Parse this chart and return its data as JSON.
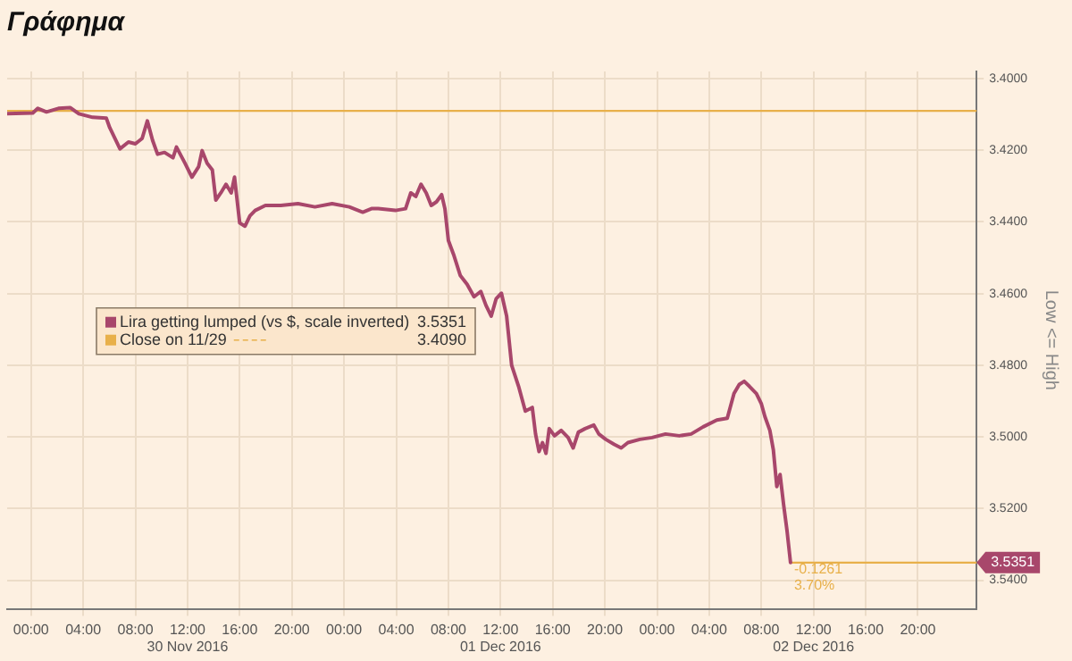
{
  "chart_data": {
    "type": "line",
    "title": "Γράφημα",
    "ylabel": "Low <= High",
    "x": [
      "2016-11-29T22:10",
      "2016-11-30T00:08",
      "2016-11-30T00:31",
      "2016-11-30T01:11",
      "2016-11-30T02:06",
      "2016-11-30T03:01",
      "2016-11-30T03:40",
      "2016-11-30T04:43",
      "2016-11-30T05:46",
      "2016-11-30T06:02",
      "2016-11-30T06:49",
      "2016-11-30T07:28",
      "2016-11-30T08:00",
      "2016-11-30T08:31",
      "2016-11-30T08:55",
      "2016-11-30T09:19",
      "2016-11-30T09:42",
      "2016-11-30T10:14",
      "2016-11-30T10:53",
      "2016-11-30T11:09",
      "2016-11-30T11:48",
      "2016-11-30T12:20",
      "2016-11-30T12:51",
      "2016-11-30T13:07",
      "2016-11-30T13:30",
      "2016-11-30T13:54",
      "2016-11-30T14:10",
      "2016-11-30T14:33",
      "2016-11-30T14:57",
      "2016-11-30T15:21",
      "2016-11-30T15:36",
      "2016-11-30T16:00",
      "2016-11-30T16:24",
      "2016-11-30T16:47",
      "2016-11-30T17:11",
      "2016-11-30T17:58",
      "2016-11-30T19:09",
      "2016-11-30T20:28",
      "2016-11-30T21:46",
      "2016-11-30T23:05",
      "2016-12-01T00:24",
      "2016-12-01T01:26",
      "2016-12-01T02:06",
      "2016-12-01T02:37",
      "2016-12-01T03:56",
      "2016-12-01T04:43",
      "2016-12-01T05:07",
      "2016-12-01T05:30",
      "2016-12-01T05:54",
      "2016-12-01T06:18",
      "2016-12-01T06:41",
      "2016-12-01T07:05",
      "2016-12-01T07:29",
      "2016-12-01T07:44",
      "2016-12-01T08:00",
      "2016-12-01T08:24",
      "2016-12-01T08:55",
      "2016-12-01T09:26",
      "2016-12-01T09:58",
      "2016-12-01T10:29",
      "2016-12-01T10:53",
      "2016-12-01T11:17",
      "2016-12-01T11:40",
      "2016-12-01T12:04",
      "2016-12-01T12:28",
      "2016-12-01T12:51",
      "2016-12-01T13:23",
      "2016-12-01T13:54",
      "2016-12-01T14:26",
      "2016-12-01T14:41",
      "2016-12-01T14:57",
      "2016-12-01T15:13",
      "2016-12-01T15:29",
      "2016-12-01T15:44",
      "2016-12-01T16:08",
      "2016-12-01T16:39",
      "2016-12-01T17:11",
      "2016-12-01T17:34",
      "2016-12-01T17:58",
      "2016-12-01T18:29",
      "2016-12-01T19:09",
      "2016-12-01T19:32",
      "2016-12-01T20:04",
      "2016-12-01T20:43",
      "2016-12-01T21:15",
      "2016-12-01T21:46",
      "2016-12-01T22:41",
      "2016-12-01T23:37",
      "2016-12-02T00:39",
      "2016-12-02T01:42",
      "2016-12-02T02:37",
      "2016-12-02T03:32",
      "2016-12-02T04:35",
      "2016-12-02T05:23",
      "2016-12-02T05:54",
      "2016-12-02T06:18",
      "2016-12-02T06:41",
      "2016-12-02T07:05",
      "2016-12-02T07:37",
      "2016-12-02T08:00",
      "2016-12-02T08:16",
      "2016-12-02T08:39",
      "2016-12-02T08:55",
      "2016-12-02T09:11",
      "2016-12-02T09:26",
      "2016-12-02T09:42",
      "2016-12-02T09:58",
      "2016-12-02T10:14"
    ],
    "series": [
      {
        "name": "Lira getting lumped (vs $, scale inverted)",
        "color": "#a8476b",
        "values": [
          3.4098,
          3.4096,
          3.4083,
          3.4093,
          3.4083,
          3.4081,
          3.4098,
          3.4108,
          3.411,
          3.4137,
          3.4196,
          3.4177,
          3.4182,
          3.4167,
          3.4118,
          3.4172,
          3.4211,
          3.4206,
          3.4221,
          3.4191,
          3.4236,
          3.4275,
          3.4246,
          3.4201,
          3.4236,
          3.4255,
          3.4339,
          3.4319,
          3.4295,
          3.4319,
          3.4275,
          3.4403,
          3.4412,
          3.4383,
          3.4368,
          3.4354,
          3.4354,
          3.4349,
          3.4358,
          3.4349,
          3.4358,
          3.4373,
          3.4363,
          3.4363,
          3.4368,
          3.4363,
          3.4319,
          3.4329,
          3.4295,
          3.4319,
          3.4354,
          3.4344,
          3.4324,
          3.4363,
          3.4452,
          3.4491,
          3.455,
          3.4574,
          3.4609,
          3.4594,
          3.4633,
          3.4663,
          3.4614,
          3.4599,
          3.4663,
          3.48,
          3.4859,
          3.4928,
          3.4918,
          3.4992,
          3.5041,
          3.5016,
          3.5046,
          3.4977,
          3.4997,
          3.4982,
          3.5002,
          3.5031,
          3.4987,
          3.4977,
          3.4967,
          3.4992,
          3.5007,
          3.5021,
          3.5031,
          3.5016,
          3.5007,
          3.5002,
          3.4992,
          3.4997,
          3.4992,
          3.4972,
          3.4953,
          3.4948,
          3.4879,
          3.4854,
          3.4845,
          3.4859,
          3.4879,
          3.4908,
          3.4943,
          3.4982,
          3.5036,
          3.5139,
          3.5105,
          3.5188,
          3.5262,
          3.5351
        ]
      },
      {
        "type": "line",
        "color": "#e8b04a",
        "x": [
          "2016-12-02T10:14",
          "2016-12-03T00:30"
        ],
        "values": [
          3.5351,
          3.5351
        ]
      }
    ],
    "ref_lines": [
      {
        "axis": "y",
        "value": 3.409,
        "label": "Close on 11/29",
        "color": "#e8b04a"
      }
    ],
    "xlim": [
      "2016-11-29T22:10",
      "2016-12-03T00:30"
    ],
    "xticks": [
      {
        "value": "2016-11-30T00:00",
        "label": "00:00"
      },
      {
        "value": "2016-11-30T04:00",
        "label": "04:00"
      },
      {
        "value": "2016-11-30T08:00",
        "label": "08:00"
      },
      {
        "value": "2016-11-30T12:00",
        "label": "12:00\n30 Nov 2016"
      },
      {
        "value": "2016-11-30T16:00",
        "label": "16:00"
      },
      {
        "value": "2016-11-30T20:00",
        "label": "20:00"
      },
      {
        "value": "2016-12-01T00:00",
        "label": "00:00"
      },
      {
        "value": "2016-12-01T04:00",
        "label": "04:00"
      },
      {
        "value": "2016-12-01T08:00",
        "label": "08:00"
      },
      {
        "value": "2016-12-01T12:00",
        "label": "12:00\n01 Dec 2016"
      },
      {
        "value": "2016-12-01T16:00",
        "label": "16:00"
      },
      {
        "value": "2016-12-01T20:00",
        "label": "20:00"
      },
      {
        "value": "2016-12-02T00:00",
        "label": "00:00"
      },
      {
        "value": "2016-12-02T04:00",
        "label": "04:00"
      },
      {
        "value": "2016-12-02T08:00",
        "label": "08:00"
      },
      {
        "value": "2016-12-02T12:00",
        "label": "12:00\n02 Dec 2016"
      },
      {
        "value": "2016-12-02T16:00",
        "label": "16:00"
      },
      {
        "value": "2016-12-02T20:00",
        "label": "20:00"
      }
    ],
    "ylim": [
      3.548,
      3.398
    ],
    "yticks": [
      {
        "value": 3.4,
        "label": "3.4000"
      },
      {
        "value": 3.42,
        "label": "3.4200"
      },
      {
        "value": 3.44,
        "label": "3.4400"
      },
      {
        "value": 3.46,
        "label": "3.4600"
      },
      {
        "value": 3.48,
        "label": "3.4800"
      },
      {
        "value": 3.5,
        "label": "3.5000"
      },
      {
        "value": 3.52,
        "label": "3.5200"
      },
      {
        "value": 3.54,
        "label": "3.5400"
      }
    ],
    "grid": true,
    "legend": "left",
    "marker": "none",
    "line_style": "solid",
    "annotations": [
      "3.5351",
      "3.4090",
      {
        "text": "-0.1261",
        "x": "2016-12-02T10:14",
        "y": 3.5351
      },
      {
        "text": "3.70%",
        "x": "2016-12-02T10:14",
        "y": 3.5351
      },
      {
        "text": "3.5351",
        "x": "2016-12-03T00:30",
        "y": 3.5351
      }
    ]
  }
}
